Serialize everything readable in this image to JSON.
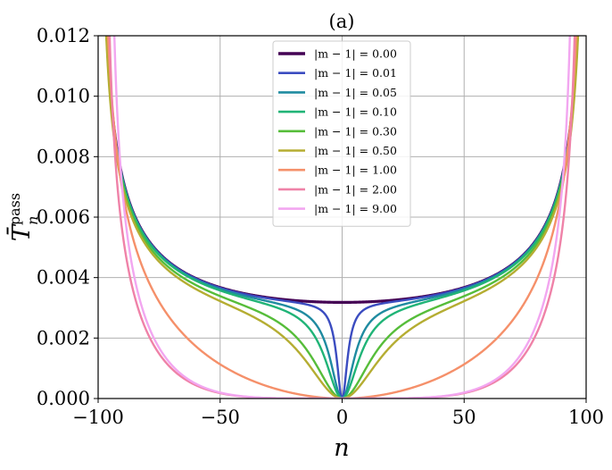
{
  "chart_data": {
    "type": "line",
    "title": "(a)",
    "xlabel": "n",
    "ylabel": "T̄",
    "ylabel_sup": "pass",
    "ylabel_sub": "n",
    "xlim": [
      -100,
      100
    ],
    "ylim": [
      0.0,
      0.012
    ],
    "xticks": [
      -100,
      -50,
      0,
      50,
      100
    ],
    "xtick_labels": [
      "−100",
      "−50",
      "0",
      "50",
      "100"
    ],
    "yticks": [
      0.0,
      0.002,
      0.004,
      0.006,
      0.008,
      0.01,
      0.012
    ],
    "ytick_labels": [
      "0.000",
      "0.002",
      "0.004",
      "0.006",
      "0.008",
      "0.010",
      "0.012"
    ],
    "grid": true,
    "legend_position": "top-center",
    "series": [
      {
        "name": "|m − 1| = 0.00",
        "color": "#440154",
        "shape": "bowl",
        "d": 0.0,
        "wall": 100
      },
      {
        "name": "|m − 1| = 0.01",
        "color": "#3b4cc0",
        "shape": "dip",
        "d": 0.01,
        "wall": 100
      },
      {
        "name": "|m − 1| = 0.05",
        "color": "#1f8ba0",
        "shape": "dip",
        "d": 0.05,
        "wall": 100
      },
      {
        "name": "|m − 1| = 0.10",
        "color": "#20b477",
        "shape": "dip",
        "d": 0.1,
        "wall": 100
      },
      {
        "name": "|m − 1| = 0.30",
        "color": "#56bd3a",
        "shape": "dip",
        "d": 0.3,
        "wall": 100
      },
      {
        "name": "|m − 1| = 0.50",
        "color": "#b5ad32",
        "shape": "dip",
        "d": 0.5,
        "wall": 100
      },
      {
        "name": "|m − 1| = 1.00",
        "color": "#f5906a",
        "shape": "well",
        "d": 1.0,
        "wall": 100
      },
      {
        "name": "|m − 1| = 2.00",
        "color": "#ef82a8",
        "shape": "well",
        "d": 2.0,
        "wall": 98
      },
      {
        "name": "|m − 1| = 9.00",
        "color": "#f2a6f0",
        "shape": "well",
        "d": 9.0,
        "wall": 96
      }
    ]
  }
}
